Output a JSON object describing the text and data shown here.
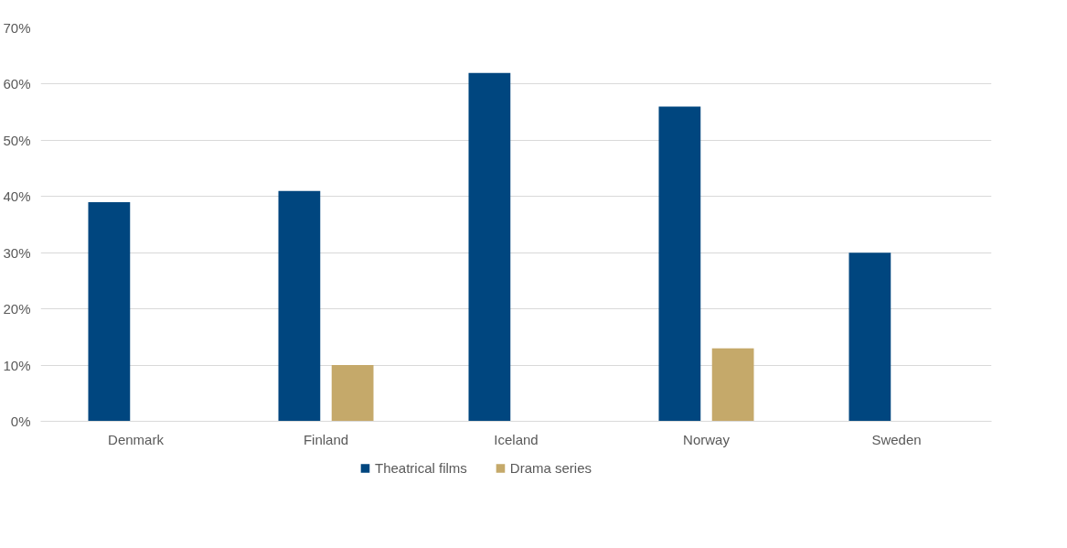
{
  "chart_data": {
    "type": "bar",
    "categories": [
      "Denmark",
      "Finland",
      "Iceland",
      "Norway",
      "Sweden"
    ],
    "series": [
      {
        "name": "Theatrical films",
        "color": "#00467f",
        "values": [
          39,
          41,
          62,
          56,
          30
        ]
      },
      {
        "name": "Drama series",
        "color": "#c5a96a",
        "values": [
          null,
          10,
          null,
          13,
          null
        ]
      }
    ],
    "ylim": [
      0,
      70
    ],
    "yticks": [
      {
        "value": 0,
        "label": "0%"
      },
      {
        "value": 10,
        "label": "10%"
      },
      {
        "value": 20,
        "label": "20%"
      },
      {
        "value": 30,
        "label": "30%"
      },
      {
        "value": 40,
        "label": "40%"
      },
      {
        "value": 50,
        "label": "50%"
      },
      {
        "value": 60,
        "label": "60%"
      },
      {
        "value": 70,
        "label": "70%"
      }
    ],
    "grid": "y",
    "legend": "bottom"
  }
}
